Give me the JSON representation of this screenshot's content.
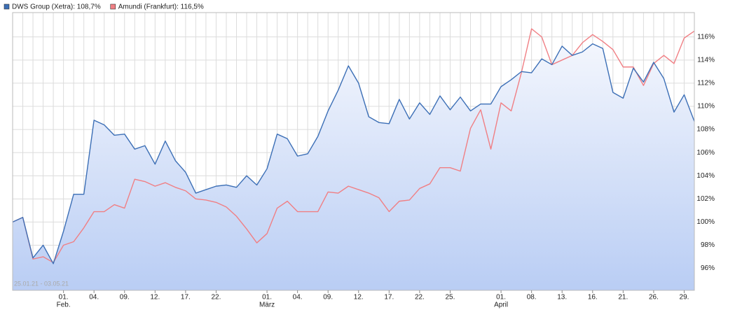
{
  "chart_data": {
    "type": "line",
    "date_range": "25.01.21 - 03.05.21",
    "categories": [
      null,
      null,
      null,
      null,
      null,
      {
        "label": "01.",
        "month": "Feb."
      },
      null,
      null,
      {
        "label": "04."
      },
      null,
      null,
      {
        "label": "09."
      },
      null,
      null,
      {
        "label": "12."
      },
      null,
      null,
      {
        "label": "17."
      },
      null,
      null,
      {
        "label": "22."
      },
      null,
      null,
      null,
      null,
      {
        "label": "01.",
        "month": "März"
      },
      null,
      null,
      {
        "label": "04."
      },
      null,
      null,
      {
        "label": "09."
      },
      null,
      null,
      {
        "label": "12."
      },
      null,
      null,
      {
        "label": "17."
      },
      null,
      null,
      {
        "label": "22."
      },
      null,
      null,
      {
        "label": "25."
      },
      null,
      null,
      null,
      null,
      {
        "label": "01.",
        "month": "April"
      },
      null,
      null,
      {
        "label": "08."
      },
      null,
      null,
      {
        "label": "13."
      },
      null,
      null,
      {
        "label": "16."
      },
      null,
      null,
      {
        "label": "21."
      },
      null,
      null,
      {
        "label": "26."
      },
      null,
      null,
      {
        "label": "29."
      },
      null
    ],
    "series": [
      {
        "name": "DWS Group (Xetra): 108,7%",
        "color": "#3c6fb6",
        "area": true,
        "values": [
          100.0,
          100.4,
          96.9,
          98.0,
          96.4,
          99.2,
          102.4,
          102.4,
          108.8,
          108.4,
          107.5,
          107.6,
          106.3,
          106.6,
          105.0,
          107.0,
          105.3,
          104.3,
          102.5,
          102.8,
          103.1,
          103.2,
          103.0,
          104.0,
          103.2,
          104.6,
          107.6,
          107.2,
          105.7,
          105.9,
          107.4,
          109.6,
          111.4,
          113.5,
          112.0,
          109.1,
          108.6,
          108.5,
          110.6,
          108.9,
          110.3,
          109.3,
          110.9,
          109.7,
          110.8,
          109.6,
          110.2,
          110.2,
          111.7,
          112.3,
          113.0,
          112.9,
          114.1,
          113.6,
          115.2,
          114.4,
          114.7,
          115.4,
          115.0,
          111.2,
          110.7,
          113.3,
          112.1,
          113.8,
          112.4,
          109.5,
          111.0,
          108.7
        ]
      },
      {
        "name": "Amundi (Frankfurt): 116,5%",
        "color": "#f07f84",
        "area": false,
        "values": [
          100.0,
          100.4,
          96.8,
          97.0,
          96.5,
          98.0,
          98.3,
          99.5,
          100.9,
          100.9,
          101.5,
          101.2,
          103.7,
          103.5,
          103.1,
          103.4,
          103.0,
          102.7,
          102.0,
          101.9,
          101.7,
          101.3,
          100.5,
          99.4,
          98.2,
          99.0,
          101.2,
          101.8,
          100.9,
          100.9,
          100.9,
          102.6,
          102.5,
          103.1,
          102.8,
          102.5,
          102.1,
          100.9,
          101.8,
          101.9,
          102.9,
          103.3,
          104.7,
          104.7,
          104.4,
          108.1,
          109.7,
          106.3,
          110.3,
          109.6,
          112.9,
          116.7,
          116.0,
          113.6,
          114.0,
          114.4,
          115.5,
          116.2,
          115.6,
          114.9,
          113.4,
          113.4,
          111.8,
          113.7,
          114.4,
          113.7,
          115.9,
          116.5
        ]
      }
    ],
    "ylim": [
      94.1,
      118.1
    ],
    "yticks": [
      {
        "value": 96,
        "label": "96%"
      },
      {
        "value": 98,
        "label": "98%"
      },
      {
        "value": 100,
        "label": "100%"
      },
      {
        "value": 102,
        "label": "102%"
      },
      {
        "value": 104,
        "label": "104%"
      },
      {
        "value": 106,
        "label": "106%"
      },
      {
        "value": 108,
        "label": "108%"
      },
      {
        "value": 110,
        "label": "110%"
      },
      {
        "value": 112,
        "label": "112%"
      },
      {
        "value": 114,
        "label": "114%"
      },
      {
        "value": 116,
        "label": "116%"
      }
    ],
    "grid": true
  }
}
